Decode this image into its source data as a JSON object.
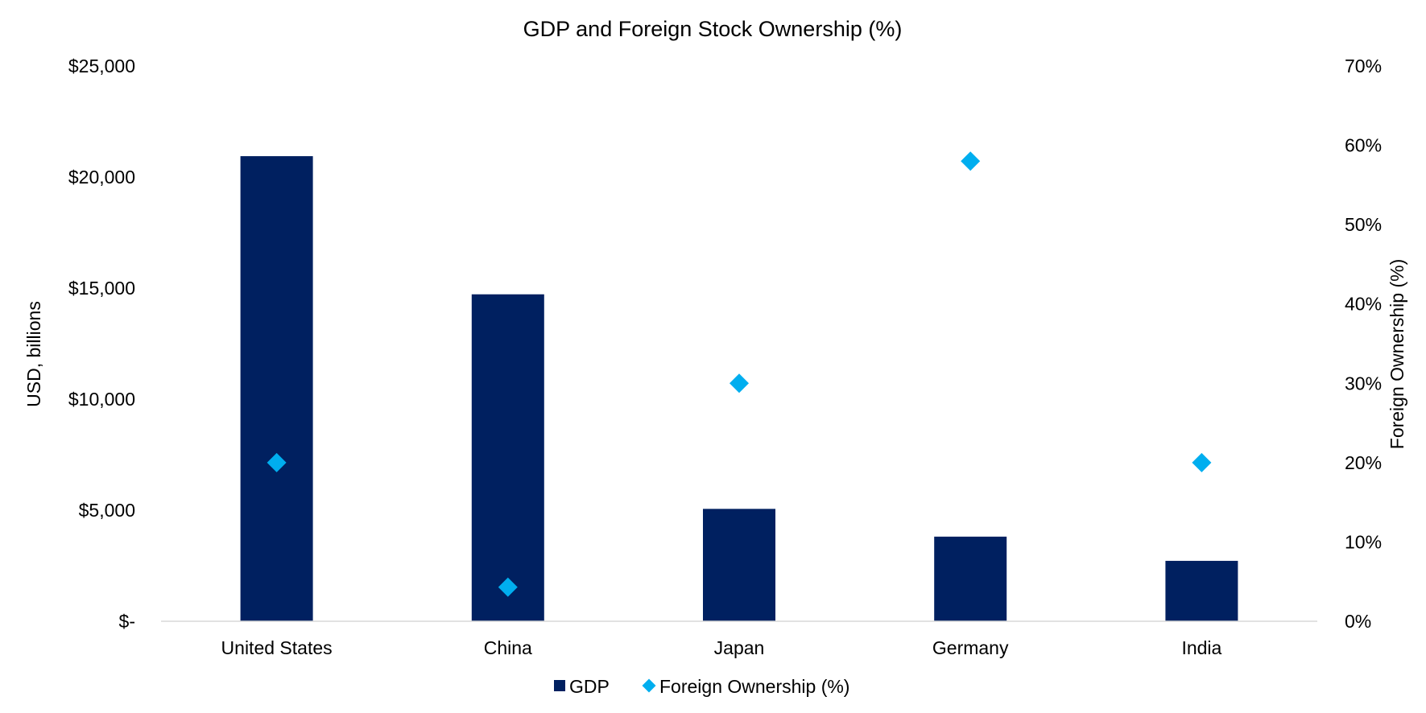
{
  "chart_data": {
    "type": "bar",
    "title": "GDP and Foreign Stock Ownership (%)",
    "categories": [
      "United States",
      "China",
      "Japan",
      "Germany",
      "India"
    ],
    "series": [
      {
        "name": "GDP",
        "type": "bar",
        "axis": "left",
        "color": "#002060",
        "values": [
          20940,
          14720,
          5060,
          3810,
          2720
        ]
      },
      {
        "name": "Foreign Ownership (%)",
        "type": "scatter",
        "marker": "diamond",
        "axis": "right",
        "color": "#00AEEF",
        "values": [
          20,
          4.3,
          30,
          58,
          20
        ]
      }
    ],
    "ylabel": "USD, billions",
    "y2label": "Foreign Ownership (%)",
    "ylim": [
      0,
      25000
    ],
    "y2lim": [
      0,
      70
    ],
    "yticks": [
      "$-",
      "$5,000",
      "$10,000",
      "$15,000",
      "$20,000",
      "$25,000"
    ],
    "y2ticks": [
      "0%",
      "10%",
      "20%",
      "30%",
      "40%",
      "50%",
      "60%",
      "70%"
    ],
    "grid": false,
    "legend": "bottom"
  }
}
